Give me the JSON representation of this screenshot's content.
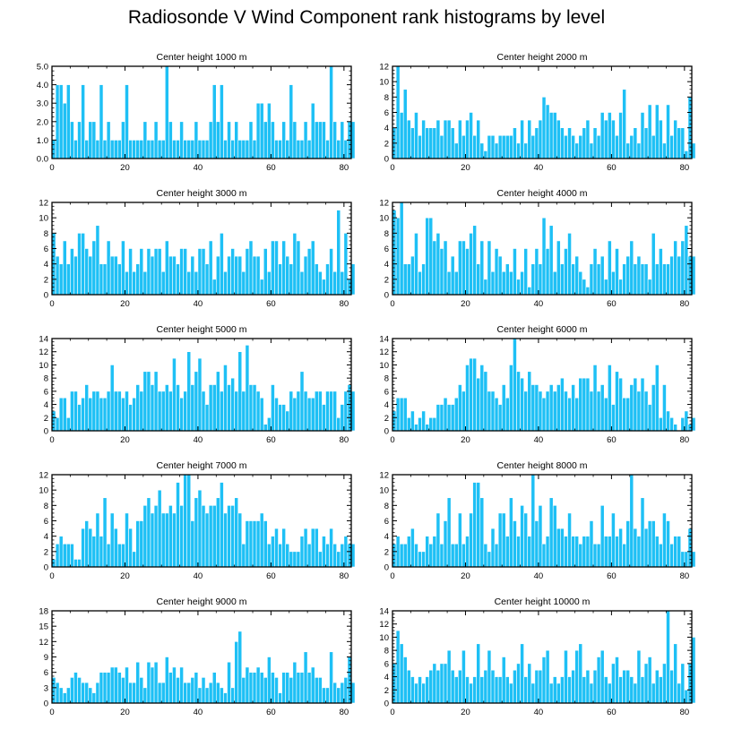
{
  "title": "Radiosonde V Wind Component rank histograms by level",
  "colors": {
    "bar_fill": "#1ec0f5",
    "bar_stroke": "#ffffff",
    "axis": "#000000"
  },
  "chart_data": [
    {
      "type": "bar",
      "title": "Center height 1000 m",
      "ylim": [
        0,
        5
      ],
      "yticks": [
        0,
        1,
        2,
        3,
        4,
        5
      ],
      "ytick_labels": [
        "0.0",
        "1.0",
        "2.0",
        "3.0",
        "4.0",
        "5.0"
      ],
      "xlim": [
        0,
        82
      ],
      "xticks": [
        0,
        20,
        40,
        60,
        80
      ],
      "values": [
        1,
        4,
        4,
        3,
        4,
        2,
        1,
        2,
        4,
        1,
        2,
        2,
        1,
        4,
        1,
        2,
        1,
        1,
        1,
        2,
        4,
        1,
        1,
        1,
        1,
        2,
        1,
        1,
        2,
        1,
        1,
        5,
        2,
        1,
        1,
        2,
        1,
        1,
        1,
        2,
        1,
        1,
        1,
        2,
        4,
        2,
        4,
        1,
        2,
        1,
        2,
        1,
        1,
        1,
        2,
        1,
        3,
        3,
        2,
        3,
        2,
        1,
        1,
        2,
        1,
        4,
        2,
        1,
        1,
        2,
        1,
        3,
        2,
        2,
        2,
        1,
        5,
        2,
        1,
        2,
        1,
        2,
        2
      ]
    },
    {
      "type": "bar",
      "title": "Center height 2000 m",
      "ylim": [
        0,
        12
      ],
      "yticks": [
        0,
        2,
        4,
        6,
        8,
        10,
        12
      ],
      "ytick_labels": [
        "0",
        "2",
        "4",
        "6",
        "8",
        "10",
        "12"
      ],
      "xlim": [
        0,
        82
      ],
      "xticks": [
        0,
        20,
        40,
        60,
        80
      ],
      "values": [
        4,
        12,
        6,
        9,
        5,
        4,
        6,
        3,
        5,
        4,
        4,
        4,
        5,
        3,
        5,
        5,
        4,
        2,
        5,
        3,
        5,
        6,
        3,
        5,
        2,
        1,
        3,
        3,
        2,
        3,
        3,
        3,
        3,
        4,
        2,
        5,
        2,
        5,
        3,
        4,
        5,
        8,
        7,
        6,
        6,
        5,
        4,
        3,
        4,
        3,
        2,
        3,
        4,
        5,
        2,
        4,
        3,
        6,
        5,
        6,
        5,
        3,
        6,
        9,
        2,
        3,
        4,
        2,
        6,
        4,
        7,
        3,
        7,
        5,
        2,
        7,
        3,
        5,
        4,
        4,
        1,
        8,
        2
      ]
    },
    {
      "type": "bar",
      "title": "Center height 3000 m",
      "ylim": [
        0,
        12
      ],
      "yticks": [
        0,
        2,
        4,
        6,
        8,
        10,
        12
      ],
      "ytick_labels": [
        "0",
        "2",
        "4",
        "6",
        "8",
        "10",
        "12"
      ],
      "xlim": [
        0,
        82
      ],
      "xticks": [
        0,
        20,
        40,
        60,
        80
      ],
      "values": [
        8,
        5,
        4,
        7,
        4,
        6,
        5,
        8,
        8,
        6,
        5,
        7,
        9,
        4,
        4,
        7,
        5,
        5,
        4,
        7,
        3,
        6,
        3,
        4,
        6,
        3,
        6,
        5,
        6,
        6,
        3,
        7,
        5,
        5,
        4,
        6,
        6,
        3,
        5,
        3,
        6,
        6,
        4,
        7,
        2,
        5,
        8,
        3,
        5,
        6,
        5,
        5,
        3,
        6,
        7,
        5,
        5,
        2,
        6,
        3,
        7,
        7,
        4,
        7,
        5,
        4,
        8,
        7,
        3,
        5,
        6,
        7,
        4,
        3,
        2,
        4,
        6,
        3,
        11,
        3,
        8,
        2,
        4
      ]
    },
    {
      "type": "bar",
      "title": "Center height 4000 m",
      "ylim": [
        0,
        12
      ],
      "yticks": [
        0,
        2,
        4,
        6,
        8,
        10,
        12
      ],
      "ytick_labels": [
        "0",
        "2",
        "4",
        "6",
        "8",
        "10",
        "12"
      ],
      "xlim": [
        0,
        82
      ],
      "xticks": [
        0,
        20,
        40,
        60,
        80
      ],
      "values": [
        11,
        10,
        12,
        4,
        4,
        5,
        8,
        3,
        4,
        10,
        10,
        7,
        8,
        6,
        7,
        3,
        5,
        3,
        7,
        7,
        6,
        8,
        9,
        4,
        7,
        2,
        7,
        3,
        6,
        5,
        3,
        4,
        3,
        6,
        2,
        3,
        6,
        1,
        4,
        6,
        4,
        10,
        6,
        9,
        3,
        7,
        4,
        6,
        8,
        4,
        5,
        3,
        2,
        1,
        4,
        6,
        4,
        5,
        2,
        7,
        3,
        6,
        2,
        4,
        5,
        7,
        4,
        5,
        4,
        4,
        2,
        8,
        4,
        6,
        4,
        4,
        5,
        7,
        5,
        7,
        9,
        5,
        5
      ]
    },
    {
      "type": "bar",
      "title": "Center height 5000 m",
      "ylim": [
        0,
        14
      ],
      "yticks": [
        0,
        2,
        4,
        6,
        8,
        10,
        12,
        14
      ],
      "ytick_labels": [
        "0",
        "2",
        "4",
        "6",
        "8",
        "10",
        "12",
        "14"
      ],
      "xlim": [
        0,
        82
      ],
      "xticks": [
        0,
        20,
        40,
        60,
        80
      ],
      "values": [
        3,
        2,
        5,
        5,
        2,
        6,
        6,
        4,
        5,
        7,
        5,
        6,
        6,
        5,
        5,
        6,
        10,
        6,
        6,
        5,
        6,
        4,
        5,
        7,
        6,
        9,
        9,
        7,
        9,
        6,
        6,
        7,
        6,
        11,
        7,
        5,
        6,
        12,
        7,
        9,
        11,
        6,
        4,
        7,
        7,
        9,
        6,
        10,
        7,
        8,
        6,
        12,
        6,
        13,
        7,
        7,
        6,
        5,
        1,
        2,
        7,
        5,
        4,
        4,
        3,
        6,
        5,
        6,
        9,
        6,
        5,
        5,
        6,
        6,
        4,
        6,
        6,
        6,
        2,
        4,
        6,
        7,
        6
      ]
    },
    {
      "type": "bar",
      "title": "Center height 6000 m",
      "ylim": [
        0,
        14
      ],
      "yticks": [
        0,
        2,
        4,
        6,
        8,
        10,
        12,
        14
      ],
      "ytick_labels": [
        "0",
        "2",
        "4",
        "6",
        "8",
        "10",
        "12",
        "14"
      ],
      "xlim": [
        0,
        82
      ],
      "xticks": [
        0,
        20,
        40,
        60,
        80
      ],
      "values": [
        3,
        5,
        5,
        5,
        2,
        3,
        1,
        2,
        3,
        1,
        2,
        2,
        4,
        4,
        5,
        4,
        4,
        5,
        7,
        6,
        10,
        11,
        11,
        8,
        10,
        9,
        6,
        6,
        5,
        4,
        7,
        5,
        10,
        14,
        9,
        8,
        6,
        9,
        7,
        7,
        6,
        5,
        6,
        7,
        6,
        7,
        8,
        6,
        5,
        7,
        5,
        8,
        8,
        8,
        6,
        10,
        6,
        7,
        5,
        10,
        4,
        9,
        8,
        5,
        5,
        7,
        8,
        6,
        8,
        6,
        4,
        7,
        10,
        2,
        7,
        3,
        2,
        1,
        0,
        2,
        3,
        1,
        2
      ]
    },
    {
      "type": "bar",
      "title": "Center height 7000 m",
      "ylim": [
        0,
        12
      ],
      "yticks": [
        0,
        2,
        4,
        6,
        8,
        10,
        12
      ],
      "ytick_labels": [
        "0",
        "2",
        "4",
        "6",
        "8",
        "10",
        "12"
      ],
      "xlim": [
        0,
        82
      ],
      "xticks": [
        0,
        20,
        40,
        60,
        80
      ],
      "values": [
        1,
        3,
        4,
        3,
        3,
        3,
        1,
        1,
        5,
        6,
        5,
        4,
        7,
        4,
        9,
        3,
        7,
        5,
        3,
        3,
        7,
        5,
        2,
        6,
        6,
        8,
        9,
        7,
        8,
        10,
        7,
        7,
        8,
        7,
        11,
        8,
        12,
        12,
        6,
        9,
        10,
        8,
        7,
        8,
        8,
        9,
        11,
        7,
        8,
        8,
        9,
        7,
        3,
        6,
        6,
        6,
        6,
        7,
        6,
        3,
        4,
        5,
        3,
        5,
        3,
        2,
        2,
        2,
        4,
        5,
        3,
        5,
        5,
        2,
        4,
        3,
        5,
        3,
        2,
        3,
        4,
        3,
        3
      ]
    },
    {
      "type": "bar",
      "title": "Center height 8000 m",
      "ylim": [
        0,
        12
      ],
      "yticks": [
        0,
        2,
        4,
        6,
        8,
        10,
        12
      ],
      "ytick_labels": [
        "0",
        "2",
        "4",
        "6",
        "8",
        "10",
        "12"
      ],
      "xlim": [
        0,
        82
      ],
      "xticks": [
        0,
        20,
        40,
        60,
        80
      ],
      "values": [
        3,
        4,
        3,
        3,
        4,
        5,
        3,
        2,
        2,
        4,
        3,
        4,
        7,
        3,
        6,
        9,
        3,
        3,
        7,
        3,
        4,
        7,
        11,
        11,
        9,
        3,
        2,
        5,
        3,
        7,
        7,
        4,
        9,
        6,
        4,
        8,
        7,
        4,
        12,
        6,
        8,
        3,
        4,
        9,
        8,
        5,
        5,
        4,
        7,
        4,
        4,
        3,
        4,
        4,
        6,
        3,
        3,
        8,
        4,
        4,
        7,
        4,
        5,
        3,
        6,
        12,
        5,
        4,
        9,
        5,
        6,
        6,
        4,
        3,
        7,
        6,
        3,
        4,
        4,
        2,
        2,
        5,
        2
      ]
    },
    {
      "type": "bar",
      "title": "Center height 9000 m",
      "ylim": [
        0,
        18
      ],
      "yticks": [
        0,
        3,
        6,
        9,
        12,
        15,
        18
      ],
      "ytick_labels": [
        "0",
        "3",
        "6",
        "9",
        "12",
        "15",
        "18"
      ],
      "xlim": [
        0,
        82
      ],
      "xticks": [
        0,
        20,
        40,
        60,
        80
      ],
      "values": [
        5,
        4,
        3,
        2,
        3,
        5,
        6,
        5,
        4,
        4,
        3,
        2,
        4,
        6,
        6,
        6,
        7,
        7,
        6,
        5,
        7,
        4,
        4,
        8,
        5,
        3,
        8,
        7,
        8,
        4,
        4,
        9,
        6,
        7,
        5,
        7,
        4,
        4,
        5,
        6,
        3,
        5,
        3,
        4,
        6,
        4,
        3,
        2,
        8,
        3,
        12,
        14,
        5,
        7,
        6,
        6,
        7,
        6,
        5,
        9,
        6,
        5,
        2,
        6,
        6,
        5,
        8,
        6,
        6,
        10,
        6,
        7,
        5,
        5,
        3,
        3,
        10,
        4,
        3,
        4,
        5,
        9,
        4
      ]
    },
    {
      "type": "bar",
      "title": "Center height 10000 m",
      "ylim": [
        0,
        14
      ],
      "yticks": [
        0,
        2,
        4,
        6,
        8,
        10,
        12,
        14
      ],
      "ytick_labels": [
        "0",
        "2",
        "4",
        "6",
        "8",
        "10",
        "12",
        "14"
      ],
      "xlim": [
        0,
        82
      ],
      "xticks": [
        0,
        20,
        40,
        60,
        80
      ],
      "values": [
        6,
        11,
        9,
        7,
        5,
        4,
        3,
        4,
        3,
        4,
        5,
        6,
        5,
        6,
        6,
        8,
        5,
        4,
        5,
        8,
        4,
        3,
        4,
        9,
        4,
        5,
        8,
        5,
        4,
        4,
        7,
        4,
        3,
        5,
        6,
        9,
        4,
        6,
        3,
        5,
        5,
        7,
        8,
        3,
        4,
        3,
        4,
        8,
        4,
        5,
        8,
        9,
        4,
        5,
        3,
        5,
        7,
        8,
        4,
        3,
        6,
        7,
        4,
        5,
        5,
        4,
        3,
        8,
        4,
        6,
        7,
        3,
        5,
        4,
        6,
        14,
        5,
        9,
        3,
        6,
        2,
        6,
        10
      ]
    }
  ]
}
